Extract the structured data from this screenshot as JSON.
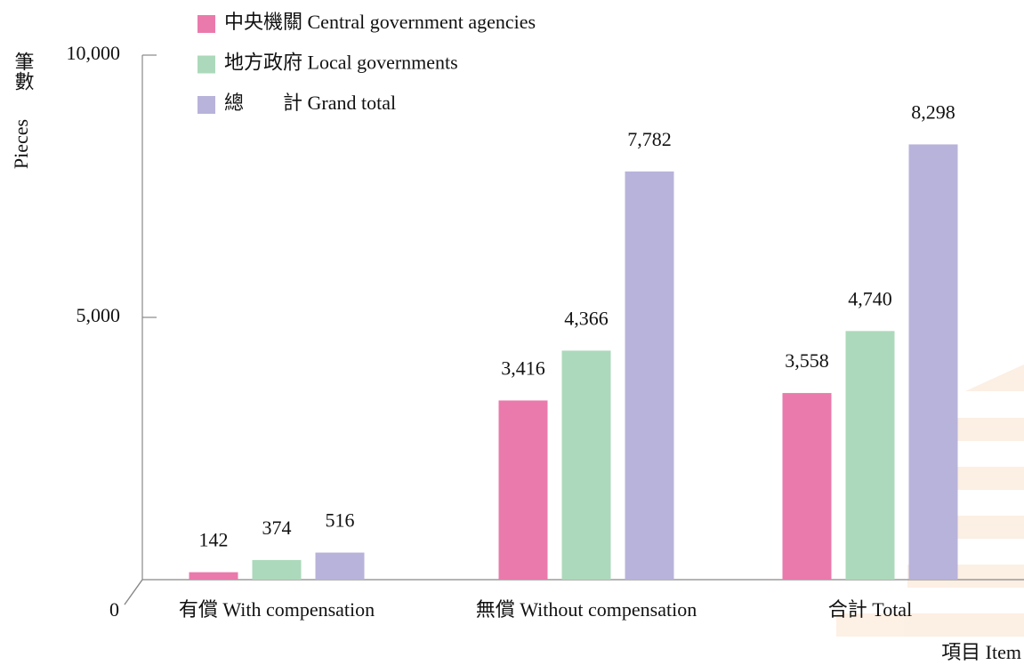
{
  "chart_data": {
    "type": "bar",
    "y_axis_label": "筆數",
    "y_axis_label_en": "Pieces",
    "x_axis_label": "項目 Item",
    "categories": [
      "有償 With compensation",
      "無償 Without compensation",
      "合計 Total"
    ],
    "series": [
      {
        "name": "中央機關 Central government agencies",
        "color": "#ea7aab",
        "values": [
          142,
          3416,
          3558
        ],
        "value_labels": [
          "142",
          "3,416",
          "3,558"
        ]
      },
      {
        "name": "地方政府 Local governments",
        "color": "#acd9bb",
        "values": [
          374,
          4366,
          4740
        ],
        "value_labels": [
          "374",
          "4,366",
          "4,740"
        ]
      },
      {
        "name": "總　　計 Grand total",
        "color": "#b8b3da",
        "values": [
          516,
          7782,
          8298
        ],
        "value_labels": [
          "516",
          "7,782",
          "8,298"
        ]
      }
    ],
    "ylim": [
      0,
      10000
    ],
    "yticks": [
      0,
      {
        "value": 5000,
        "label": "5,000"
      },
      {
        "value": 10000,
        "label": "10,000"
      }
    ]
  }
}
